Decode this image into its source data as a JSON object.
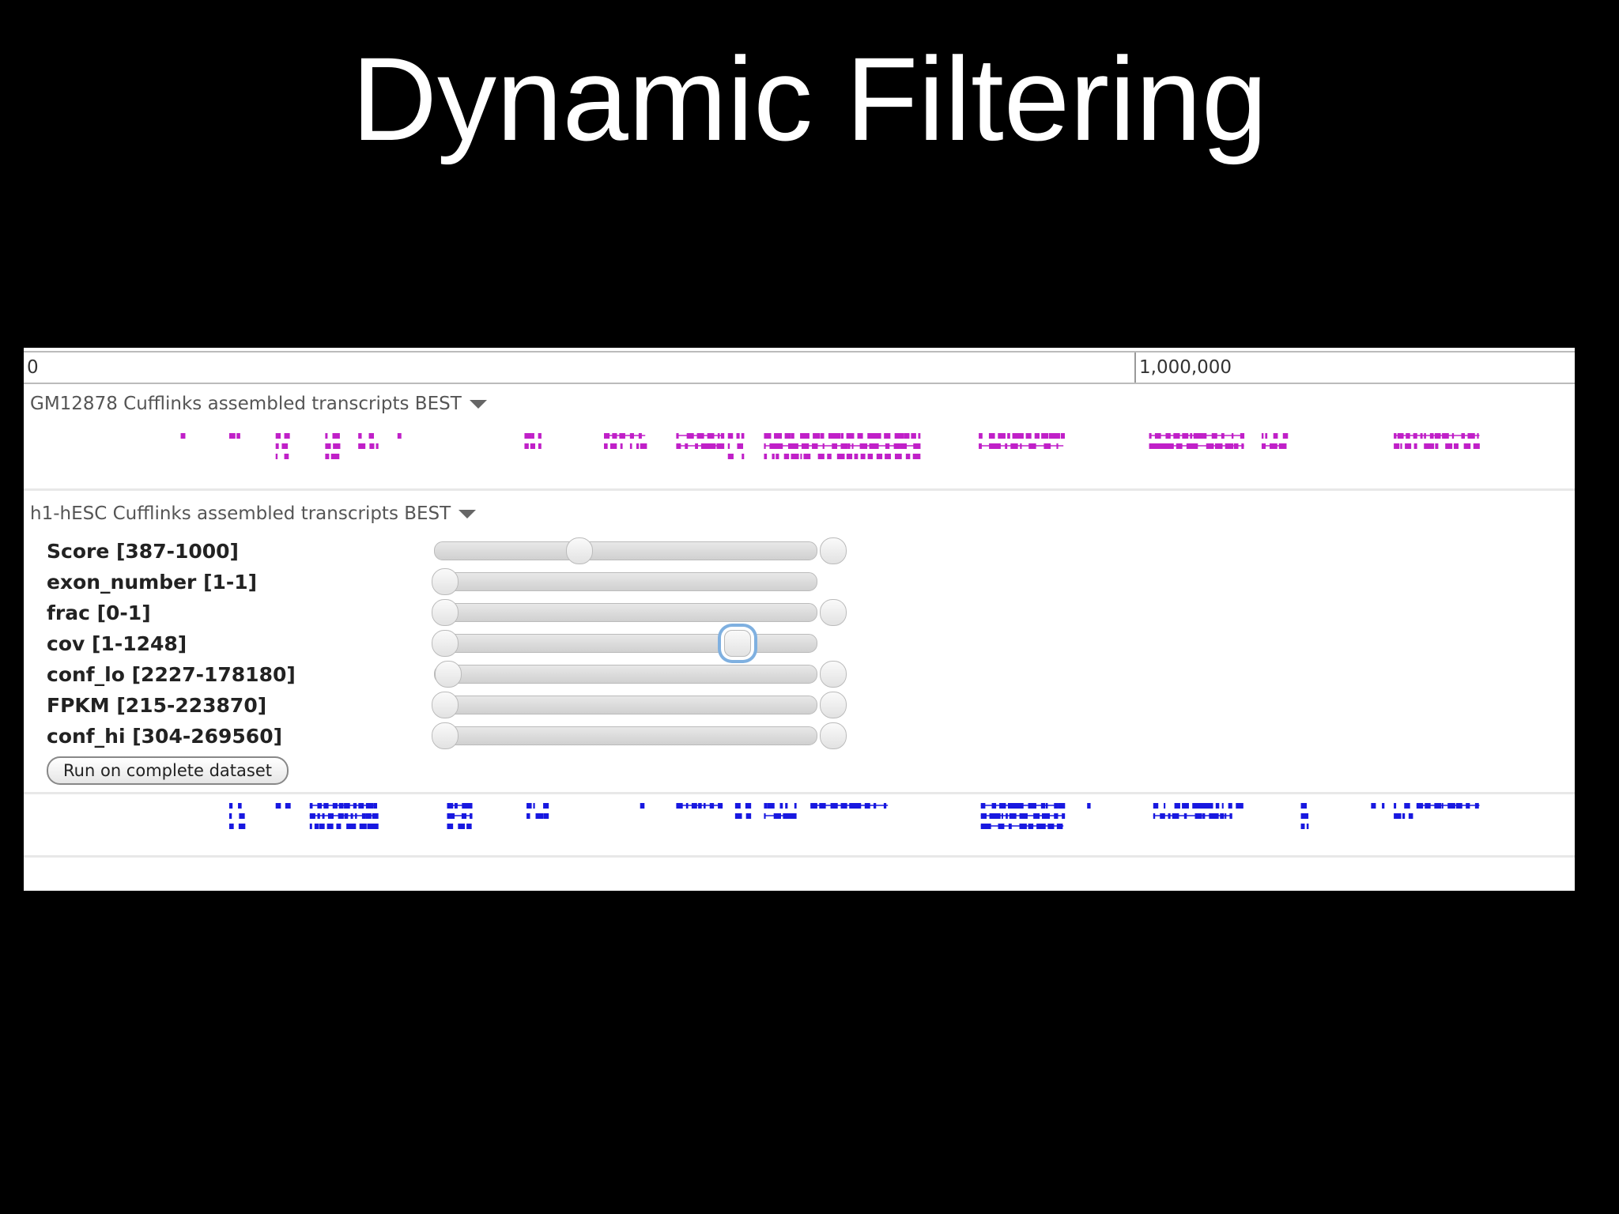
{
  "title": "Dynamic Filtering",
  "ruler": {
    "start": "0",
    "mark": "1,000,000"
  },
  "tracks": [
    {
      "name": "GM12878 Cufflinks assembled transcripts BEST"
    },
    {
      "name": "h1-hESC Cufflinks assembled transcripts BEST",
      "filters": [
        "Score [387-1000]",
        "exon_number [1-1]",
        "frac [0-1]",
        "cov [1-1248]",
        "conf_lo [2227-178180]",
        "FPKM [215-223870]",
        "conf_hi [304-269560]"
      ],
      "button": "Run on complete dataset"
    }
  ]
}
